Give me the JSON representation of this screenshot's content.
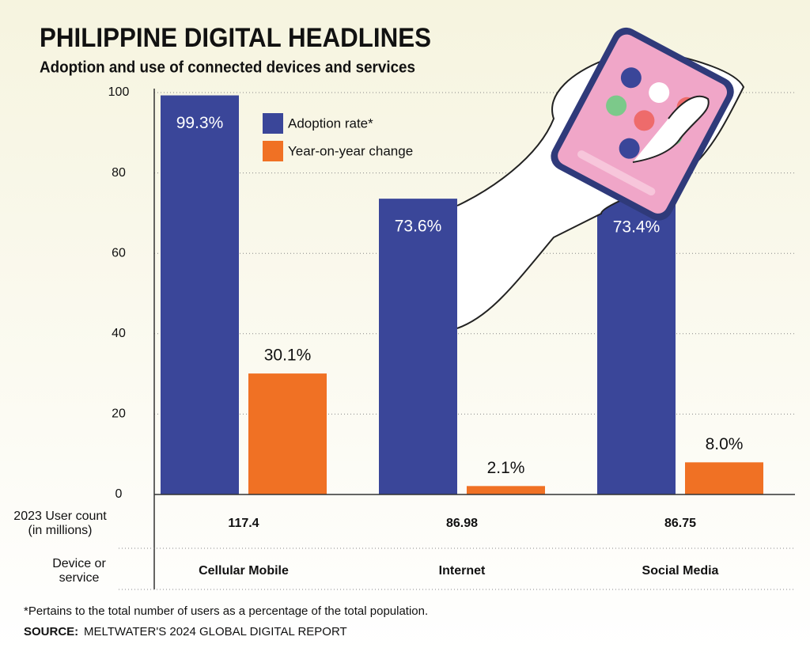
{
  "chart_data": {
    "type": "bar",
    "title": "PHILIPPINE DIGITAL HEADLINES",
    "subtitle": "Adoption and use of connected devices and services",
    "categories": [
      "Cellular Mobile",
      "Internet",
      "Social Media"
    ],
    "x_label": [
      "Device or",
      "service"
    ],
    "series": [
      {
        "name": "Adoption rate*",
        "color": "#3a4699",
        "values": [
          99.3,
          73.6,
          73.4
        ],
        "value_labels": [
          "99.3%",
          "73.6%",
          "73.4%"
        ]
      },
      {
        "name": "Year-on-year change",
        "color": "#f07124",
        "values": [
          30.1,
          2.1,
          8.0
        ],
        "value_labels": [
          "30.1%",
          "2.1%",
          "8.0%"
        ]
      }
    ],
    "user_count_label": [
      "2023 User count",
      "(in millions)"
    ],
    "user_count": [
      117.4,
      86.98,
      86.75
    ],
    "ylim": [
      0,
      100
    ],
    "yticks": [
      0,
      20,
      40,
      60,
      80,
      100
    ],
    "grid": true,
    "footnote": "*Pertains to the total number of users as a percentage of the total population.",
    "source": {
      "label": "SOURCE:",
      "text": "MELTWATER'S 2024 GLOBAL DIGITAL REPORT"
    }
  }
}
